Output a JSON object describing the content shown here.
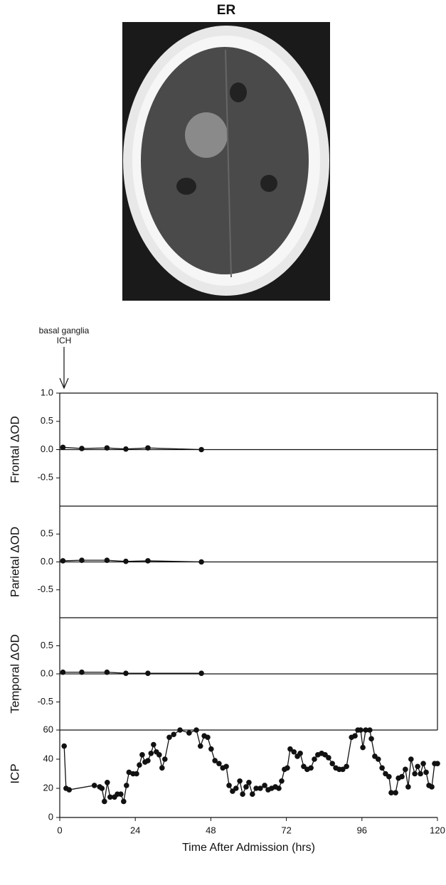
{
  "title": "ER",
  "annotation_lines": [
    "basal ganglia",
    "ICH"
  ],
  "chart_data": [
    {
      "type": "line",
      "ylabel": "Frontal ΔOD",
      "xlim": [
        0,
        120
      ],
      "ylim": [
        -1,
        1
      ],
      "yticks": [
        {
          "value": 1,
          "label": "1.0"
        },
        0.5,
        {
          "value": 0,
          "label": "0.0"
        },
        -0.5
      ],
      "reference_line": 0,
      "x": [
        1,
        7,
        15,
        21,
        28,
        45
      ],
      "series": [
        {
          "color": "#111111",
          "values": [
            0.04,
            0.02,
            0.03,
            0.01,
            0.03,
            0.0
          ]
        }
      ]
    },
    {
      "type": "line",
      "ylabel": "Parietal ΔOD",
      "xlim": [
        0,
        120
      ],
      "ylim": [
        -1,
        1
      ],
      "yticks": [
        0.5,
        {
          "value": 0,
          "label": "0.0"
        },
        -0.5
      ],
      "reference_line": 0,
      "x": [
        1,
        7,
        15,
        21,
        28,
        45
      ],
      "series": [
        {
          "color": "#111111",
          "values": [
            0.02,
            0.03,
            0.03,
            0.01,
            0.02,
            0.0
          ]
        }
      ]
    },
    {
      "type": "line",
      "ylabel": "Temporal ΔOD",
      "xlim": [
        0,
        120
      ],
      "ylim": [
        -1,
        1
      ],
      "yticks": [
        0.5,
        {
          "value": 0,
          "label": "0.0"
        },
        -0.5
      ],
      "reference_line": 0,
      "x": [
        1,
        7,
        15,
        21,
        28,
        45
      ],
      "series": [
        {
          "color": "#111111",
          "values": [
            0.03,
            0.03,
            0.03,
            0.01,
            0.01,
            0.01
          ]
        }
      ]
    },
    {
      "type": "line",
      "ylabel": "ICP",
      "xlabel": "Time After Admission (hrs)",
      "xlim": [
        0,
        120
      ],
      "ylim": [
        0,
        60
      ],
      "yticks": [
        0,
        20,
        40,
        60
      ],
      "xticks": [
        0,
        24,
        48,
        72,
        96,
        120
      ],
      "x": [
        1.4,
        2,
        3,
        11,
        12.7,
        13.4,
        14.2,
        15.1,
        16,
        17.4,
        18.3,
        19.4,
        20.3,
        21.2,
        22,
        23.3,
        24.4,
        25.3,
        26.2,
        27.1,
        28,
        29,
        29.8,
        30.7,
        31.6,
        32.5,
        33.4,
        34.8,
        36.2,
        38.2,
        41.1,
        43.4,
        44.7,
        45.9,
        47,
        48.1,
        49.3,
        50.6,
        51.8,
        52.9,
        53.8,
        54.9,
        56,
        57.2,
        58.1,
        59.2,
        60.1,
        61.2,
        62.4,
        63.7,
        65.1,
        66.2,
        67.3,
        68.5,
        69.6,
        70.5,
        71.4,
        72.3,
        73.2,
        74.4,
        75.5,
        76.4,
        77.5,
        78.6,
        79.8,
        80.9,
        82,
        83.2,
        84.3,
        85.4,
        86.6,
        87.7,
        88.8,
        89.9,
        91.1,
        92.7,
        93.8,
        94.7,
        95.6,
        96.3,
        97.2,
        98.5,
        99,
        100.1,
        101.2,
        102.4,
        103.5,
        104.6,
        105.3,
        106.7,
        107.6,
        108.7,
        109.8,
        110.7,
        111.6,
        112.8,
        113.7,
        114.6,
        115.5,
        116.4,
        117.3,
        118.2,
        119.1,
        120
      ],
      "series": [
        {
          "color": "#111111",
          "values": [
            49,
            20,
            19,
            22,
            21,
            20,
            11,
            24,
            14,
            14,
            16,
            16,
            11,
            22,
            31,
            30,
            30,
            36,
            43,
            38,
            39,
            44,
            50,
            45,
            43,
            34,
            40,
            55,
            57,
            60,
            58,
            60,
            49,
            56,
            55,
            47,
            39,
            37,
            34,
            35,
            22,
            18,
            20,
            25,
            16,
            21,
            24,
            16,
            20,
            20,
            22,
            19,
            20,
            21,
            20,
            25,
            33,
            34,
            47,
            45,
            42,
            44,
            35,
            33,
            34,
            40,
            43,
            44,
            43,
            41,
            37,
            34,
            33,
            33,
            35,
            55,
            56,
            60,
            60,
            48,
            60,
            60,
            54,
            42,
            40,
            34,
            30,
            28,
            17,
            17,
            27,
            28,
            33,
            21,
            40,
            30,
            35,
            30,
            37,
            31,
            22,
            21,
            37,
            37
          ]
        }
      ]
    }
  ]
}
